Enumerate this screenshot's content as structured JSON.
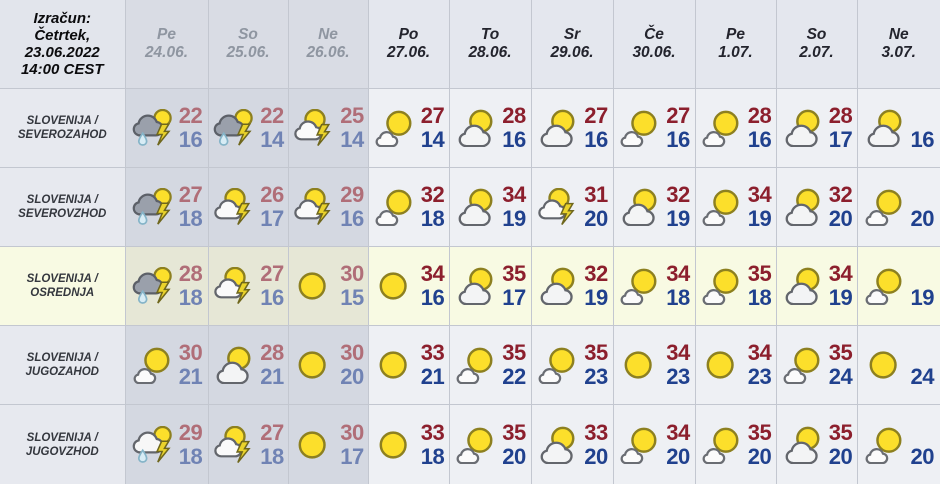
{
  "title": {
    "lines": [
      "Izračun:",
      "Četrtek,",
      "23.06.2022",
      "14:00 CEST"
    ]
  },
  "columns": [
    {
      "day": "Pe",
      "date": "24.06.",
      "past": true
    },
    {
      "day": "So",
      "date": "25.06.",
      "past": true
    },
    {
      "day": "Ne",
      "date": "26.06.",
      "past": true
    },
    {
      "day": "Po",
      "date": "27.06.",
      "past": false
    },
    {
      "day": "To",
      "date": "28.06.",
      "past": false
    },
    {
      "day": "Sr",
      "date": "29.06.",
      "past": false
    },
    {
      "day": "Če",
      "date": "30.06.",
      "past": false
    },
    {
      "day": "Pe",
      "date": "1.07.",
      "past": false
    },
    {
      "day": "So",
      "date": "2.07.",
      "past": false
    },
    {
      "day": "Ne",
      "date": "3.07.",
      "past": false
    }
  ],
  "rows": [
    {
      "label": [
        "SLOVENIJA /",
        "SEVEROZAHOD"
      ],
      "highlight": false,
      "cells": [
        {
          "icon": "thunder-rain-dark",
          "high": "22",
          "low": "16"
        },
        {
          "icon": "thunder-rain-dark",
          "high": "22",
          "low": "14"
        },
        {
          "icon": "thunder",
          "high": "25",
          "low": "14"
        },
        {
          "icon": "mostly-sunny",
          "high": "27",
          "low": "14"
        },
        {
          "icon": "partly-cloudy",
          "high": "28",
          "low": "16"
        },
        {
          "icon": "partly-cloudy",
          "high": "27",
          "low": "16"
        },
        {
          "icon": "mostly-sunny",
          "high": "27",
          "low": "16"
        },
        {
          "icon": "mostly-sunny",
          "high": "28",
          "low": "16"
        },
        {
          "icon": "partly-cloudy",
          "high": "28",
          "low": "17"
        },
        {
          "icon": "partly-cloudy",
          "high": "",
          "low": "16"
        }
      ]
    },
    {
      "label": [
        "SLOVENIJA /",
        "SEVEROVZHOD"
      ],
      "highlight": false,
      "cells": [
        {
          "icon": "thunder-rain-dark",
          "high": "27",
          "low": "18"
        },
        {
          "icon": "thunder",
          "high": "26",
          "low": "17"
        },
        {
          "icon": "thunder",
          "high": "29",
          "low": "16"
        },
        {
          "icon": "mostly-sunny",
          "high": "32",
          "low": "18"
        },
        {
          "icon": "partly-cloudy",
          "high": "34",
          "low": "19"
        },
        {
          "icon": "thunder",
          "high": "31",
          "low": "20"
        },
        {
          "icon": "partly-cloudy",
          "high": "32",
          "low": "19"
        },
        {
          "icon": "mostly-sunny",
          "high": "34",
          "low": "19"
        },
        {
          "icon": "partly-cloudy",
          "high": "32",
          "low": "20"
        },
        {
          "icon": "mostly-sunny",
          "high": "",
          "low": "20"
        }
      ]
    },
    {
      "label": [
        "SLOVENIJA /",
        "OSREDNJA"
      ],
      "highlight": true,
      "cells": [
        {
          "icon": "thunder-rain-dark",
          "high": "28",
          "low": "18"
        },
        {
          "icon": "thunder",
          "high": "27",
          "low": "16"
        },
        {
          "icon": "sunny",
          "high": "30",
          "low": "15"
        },
        {
          "icon": "sunny",
          "high": "34",
          "low": "16"
        },
        {
          "icon": "partly-cloudy",
          "high": "35",
          "low": "17"
        },
        {
          "icon": "partly-cloudy",
          "high": "32",
          "low": "19"
        },
        {
          "icon": "mostly-sunny",
          "high": "34",
          "low": "18"
        },
        {
          "icon": "mostly-sunny",
          "high": "35",
          "low": "18"
        },
        {
          "icon": "partly-cloudy",
          "high": "34",
          "low": "19"
        },
        {
          "icon": "mostly-sunny",
          "high": "",
          "low": "19"
        }
      ]
    },
    {
      "label": [
        "SLOVENIJA /",
        "JUGOZAHOD"
      ],
      "highlight": false,
      "cells": [
        {
          "icon": "mostly-sunny",
          "high": "30",
          "low": "21"
        },
        {
          "icon": "partly-cloudy",
          "high": "28",
          "low": "21"
        },
        {
          "icon": "sunny",
          "high": "30",
          "low": "20"
        },
        {
          "icon": "sunny",
          "high": "33",
          "low": "21"
        },
        {
          "icon": "mostly-sunny",
          "high": "35",
          "low": "22"
        },
        {
          "icon": "mostly-sunny",
          "high": "35",
          "low": "23"
        },
        {
          "icon": "sunny",
          "high": "34",
          "low": "23"
        },
        {
          "icon": "sunny",
          "high": "34",
          "low": "23"
        },
        {
          "icon": "mostly-sunny",
          "high": "35",
          "low": "24"
        },
        {
          "icon": "sunny",
          "high": "",
          "low": "24"
        }
      ]
    },
    {
      "label": [
        "SLOVENIJA /",
        "JUGOVZHOD"
      ],
      "highlight": false,
      "cells": [
        {
          "icon": "thunder-rain-light",
          "high": "29",
          "low": "18"
        },
        {
          "icon": "thunder",
          "high": "27",
          "low": "18"
        },
        {
          "icon": "sunny",
          "high": "30",
          "low": "17"
        },
        {
          "icon": "sunny",
          "high": "33",
          "low": "18"
        },
        {
          "icon": "mostly-sunny",
          "high": "35",
          "low": "20"
        },
        {
          "icon": "partly-cloudy",
          "high": "33",
          "low": "20"
        },
        {
          "icon": "mostly-sunny",
          "high": "34",
          "low": "20"
        },
        {
          "icon": "mostly-sunny",
          "high": "35",
          "low": "20"
        },
        {
          "icon": "partly-cloudy",
          "high": "35",
          "low": "20"
        },
        {
          "icon": "mostly-sunny",
          "high": "",
          "low": "20"
        }
      ]
    }
  ],
  "colors": {
    "high-temp": "#8c1f2d",
    "low-temp": "#20418e",
    "high-temp-past": "#b06e78",
    "low-temp-past": "#7083b4",
    "header-text": "#23242d",
    "header-text-past": "#8f96a1",
    "row-label": "#34373e",
    "bg-light": "#eef0f4",
    "bg-past": "#d4d8e1",
    "bg-header": "#e4e7ee",
    "bg-header-past": "#d9dce4",
    "bg-label": "#e7e9ef",
    "bg-corner": "#e2e5ec",
    "bg-highlight": "#f8fae3",
    "bg-highlight-past": "#e6e7d6",
    "grid-line": "#c3c7d0",
    "sun": "#fcdf2b",
    "sun-stroke": "#8d8020"
  }
}
